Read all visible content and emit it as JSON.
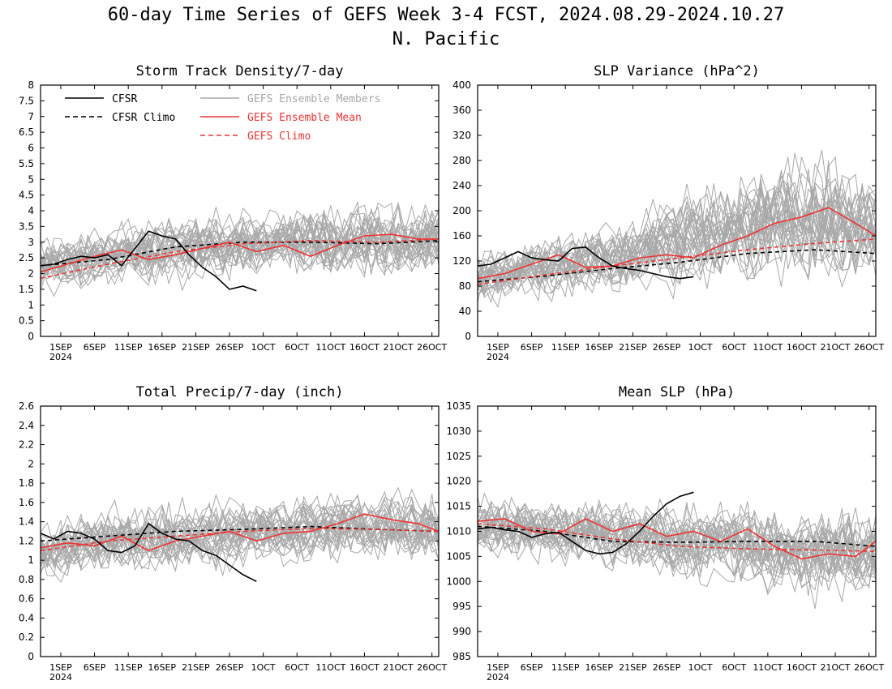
{
  "figure": {
    "title": "60-day Time Series of GEFS Week 3-4 FCST, 2024.08.29-2024.10.27",
    "subtitle": "N. Pacific"
  },
  "legend": {
    "cfsr": "CFSR",
    "cfsr_climo": "CFSR Climo",
    "members": "GEFS Ensemble Members",
    "mean": "GEFS Ensemble Mean",
    "gefs_climo": "GEFS Climo"
  },
  "colors": {
    "cfsr": "#000000",
    "members": "#a8a8a8",
    "mean": "#ee3333",
    "gefs_climo": "#ee3333"
  },
  "chart_data": [
    {
      "type": "line",
      "title": "Storm Track Density/7-day",
      "ylim": [
        0,
        8
      ],
      "yticks": [
        "0",
        "0.5",
        "1",
        "1.5",
        "2",
        "2.5",
        "3",
        "3.5",
        "4",
        "4.5",
        "5",
        "5.5",
        "6",
        "6.5",
        "7",
        "7.5",
        "8"
      ],
      "x_tick_labels": [
        "1SEP",
        "6SEP",
        "11SEP",
        "16SEP",
        "21SEP",
        "26SEP",
        "1OCT",
        "6OCT",
        "11OCT",
        "16OCT",
        "21OCT",
        "26OCT"
      ],
      "x_year_label": "2024",
      "x_start": "2024-08-29",
      "x_end": "2024-10-27",
      "legend": "top-left",
      "series": [
        {
          "name": "CFSR",
          "style": "solid-black",
          "x": [
            0,
            2,
            4,
            6,
            8,
            10,
            12,
            14,
            16,
            18,
            20,
            22,
            24,
            26,
            28,
            30,
            32
          ],
          "y": [
            2.25,
            2.3,
            2.45,
            2.55,
            2.5,
            2.6,
            2.25,
            2.8,
            3.35,
            3.2,
            3.1,
            2.6,
            2.2,
            1.9,
            1.5,
            1.6,
            1.45
          ]
        },
        {
          "name": "CFSR Climo",
          "style": "dashed-black",
          "x": [
            0,
            10,
            20,
            30,
            40,
            50,
            59
          ],
          "y": [
            2.25,
            2.45,
            2.85,
            3.0,
            3.0,
            2.95,
            3.05
          ]
        },
        {
          "name": "GEFS Ensemble Mean",
          "style": "solid-red",
          "x": [
            0,
            4,
            8,
            12,
            16,
            20,
            24,
            28,
            32,
            36,
            40,
            44,
            48,
            52,
            56,
            59
          ],
          "y": [
            2.05,
            2.3,
            2.55,
            2.75,
            2.45,
            2.6,
            2.8,
            3.0,
            2.7,
            2.9,
            2.55,
            2.9,
            3.2,
            3.25,
            3.1,
            3.1
          ]
        },
        {
          "name": "GEFS Climo",
          "style": "dashed-red",
          "x": [
            0,
            10,
            20,
            30,
            40,
            50,
            59
          ],
          "y": [
            1.85,
            2.3,
            2.7,
            2.95,
            3.05,
            3.0,
            3.1
          ]
        },
        {
          "name": "GEFS Ensemble Members",
          "style": "members",
          "center": [
            2.2,
            2.4,
            2.6,
            2.75,
            2.9,
            3.0,
            3.0,
            3.05,
            3.1,
            3.1
          ],
          "spread": [
            0.85,
            0.9,
            0.95,
            1.0,
            1.0,
            1.0,
            1.1,
            1.15,
            1.15,
            1.1
          ]
        }
      ]
    },
    {
      "type": "line",
      "title": "SLP Variance (hPa^2)",
      "ylim": [
        0,
        400
      ],
      "yticks": [
        "0",
        "40",
        "80",
        "120",
        "160",
        "200",
        "240",
        "280",
        "320",
        "360",
        "400"
      ],
      "x_tick_labels": [
        "1SEP",
        "6SEP",
        "11SEP",
        "16SEP",
        "21SEP",
        "26SEP",
        "1OCT",
        "6OCT",
        "11OCT",
        "16OCT",
        "21OCT",
        "26OCT"
      ],
      "x_year_label": "2024",
      "x_start": "2024-08-29",
      "x_end": "2024-10-27",
      "series": [
        {
          "name": "CFSR",
          "style": "solid-black",
          "x": [
            0,
            2,
            4,
            6,
            8,
            10,
            12,
            14,
            16,
            18,
            20,
            22,
            24,
            26,
            28,
            30,
            32
          ],
          "y": [
            112,
            115,
            125,
            135,
            125,
            122,
            120,
            140,
            142,
            125,
            112,
            108,
            105,
            100,
            95,
            92,
            95
          ]
        },
        {
          "name": "CFSR Climo",
          "style": "dashed-black",
          "x": [
            0,
            10,
            20,
            30,
            40,
            50,
            59
          ],
          "y": [
            87,
            96,
            108,
            118,
            132,
            138,
            132
          ]
        },
        {
          "name": "GEFS Ensemble Mean",
          "style": "solid-red",
          "x": [
            0,
            4,
            8,
            12,
            16,
            20,
            24,
            28,
            32,
            36,
            40,
            44,
            48,
            52,
            56,
            59
          ],
          "y": [
            92,
            100,
            115,
            130,
            110,
            112,
            125,
            130,
            125,
            145,
            160,
            180,
            190,
            205,
            180,
            160
          ]
        },
        {
          "name": "GEFS Climo",
          "style": "dashed-red",
          "x": [
            0,
            10,
            20,
            30,
            40,
            50,
            59
          ],
          "y": [
            83,
            98,
            112,
            125,
            138,
            148,
            155
          ]
        },
        {
          "name": "GEFS Ensemble Members",
          "style": "members",
          "center": [
            95,
            105,
            115,
            125,
            140,
            160,
            175,
            185,
            185,
            175
          ],
          "spread": [
            40,
            45,
            50,
            55,
            65,
            75,
            85,
            95,
            90,
            80
          ]
        }
      ]
    },
    {
      "type": "line",
      "title": "Total Precip/7-day (inch)",
      "ylim": [
        0,
        2.6
      ],
      "yticks": [
        "0",
        "0.2",
        "0.4",
        "0.6",
        "0.8",
        "1",
        "1.2",
        "1.4",
        "1.6",
        "1.8",
        "2",
        "2.2",
        "2.4",
        "2.6"
      ],
      "x_tick_labels": [
        "1SEP",
        "6SEP",
        "11SEP",
        "16SEP",
        "21SEP",
        "26SEP",
        "1OCT",
        "6OCT",
        "11OCT",
        "16OCT",
        "21OCT",
        "26OCT"
      ],
      "x_year_label": "2024",
      "x_start": "2024-08-29",
      "x_end": "2024-10-27",
      "series": [
        {
          "name": "CFSR",
          "style": "solid-black",
          "x": [
            0,
            2,
            4,
            6,
            8,
            10,
            12,
            14,
            16,
            18,
            20,
            22,
            24,
            26,
            28,
            30,
            32
          ],
          "y": [
            1.28,
            1.22,
            1.3,
            1.28,
            1.22,
            1.1,
            1.08,
            1.15,
            1.38,
            1.28,
            1.22,
            1.2,
            1.1,
            1.05,
            0.95,
            0.85,
            0.78
          ]
        },
        {
          "name": "CFSR Climo",
          "style": "dashed-black",
          "x": [
            0,
            10,
            20,
            30,
            40,
            50,
            59
          ],
          "y": [
            1.2,
            1.25,
            1.3,
            1.32,
            1.35,
            1.32,
            1.3
          ]
        },
        {
          "name": "GEFS Ensemble Mean",
          "style": "solid-red",
          "x": [
            0,
            4,
            8,
            12,
            16,
            20,
            24,
            28,
            32,
            36,
            40,
            44,
            48,
            52,
            56,
            59
          ],
          "y": [
            1.13,
            1.18,
            1.15,
            1.25,
            1.1,
            1.2,
            1.25,
            1.3,
            1.2,
            1.28,
            1.3,
            1.38,
            1.48,
            1.42,
            1.38,
            1.3
          ]
        },
        {
          "name": "GEFS Climo",
          "style": "dashed-red",
          "x": [
            0,
            10,
            20,
            30,
            40,
            50,
            59
          ],
          "y": [
            1.1,
            1.2,
            1.25,
            1.3,
            1.33,
            1.32,
            1.3
          ]
        },
        {
          "name": "GEFS Ensemble Members",
          "style": "members",
          "center": [
            1.1,
            1.18,
            1.22,
            1.25,
            1.28,
            1.3,
            1.32,
            1.35,
            1.35,
            1.3
          ],
          "spread": [
            0.3,
            0.32,
            0.33,
            0.33,
            0.33,
            0.33,
            0.34,
            0.36,
            0.36,
            0.34
          ]
        }
      ]
    },
    {
      "type": "line",
      "title": "Mean SLP (hPa)",
      "ylim": [
        985,
        1035
      ],
      "yticks": [
        "985",
        "990",
        "995",
        "1000",
        "1005",
        "1010",
        "1015",
        "1020",
        "1025",
        "1030",
        "1035"
      ],
      "x_tick_labels": [
        "1SEP",
        "6SEP",
        "11SEP",
        "16SEP",
        "21SEP",
        "26SEP",
        "1OCT",
        "6OCT",
        "11OCT",
        "16OCT",
        "21OCT",
        "26OCT"
      ],
      "x_year_label": "2024",
      "x_start": "2024-08-29",
      "x_end": "2024-10-27",
      "series": [
        {
          "name": "CFSR",
          "style": "solid-black",
          "x": [
            0,
            2,
            4,
            6,
            8,
            10,
            12,
            14,
            16,
            18,
            20,
            22,
            24,
            26,
            28,
            30,
            32
          ],
          "y": [
            1010.5,
            1010.8,
            1010.3,
            1010,
            1008.8,
            1009.5,
            1009.8,
            1008,
            1006.2,
            1005.5,
            1005.8,
            1007.5,
            1010,
            1013,
            1015.5,
            1017,
            1017.8
          ]
        },
        {
          "name": "CFSR Climo",
          "style": "dashed-black",
          "x": [
            0,
            10,
            20,
            30,
            40,
            50,
            59
          ],
          "y": [
            1011,
            1010,
            1008,
            1007.8,
            1008,
            1008,
            1007
          ]
        },
        {
          "name": "GEFS Ensemble Mean",
          "style": "solid-red",
          "x": [
            0,
            4,
            8,
            12,
            16,
            20,
            24,
            28,
            32,
            36,
            40,
            44,
            48,
            52,
            56,
            59
          ],
          "y": [
            1012,
            1012.5,
            1010,
            1009.5,
            1012.5,
            1010,
            1011.5,
            1009,
            1010,
            1008,
            1010.5,
            1007,
            1004.5,
            1005.5,
            1005,
            1008
          ]
        },
        {
          "name": "GEFS Climo",
          "style": "dashed-red",
          "x": [
            0,
            10,
            20,
            30,
            40,
            50,
            59
          ],
          "y": [
            1011.5,
            1010.5,
            1008.5,
            1007,
            1006.5,
            1006.3,
            1006
          ]
        },
        {
          "name": "GEFS Ensemble Members",
          "style": "members",
          "center": [
            1011,
            1011,
            1010,
            1009.5,
            1008.5,
            1008,
            1007,
            1006,
            1005.5,
            1006
          ],
          "spread": [
            6,
            6,
            6.5,
            6.5,
            7,
            7.5,
            8,
            8.5,
            8.5,
            8
          ]
        }
      ]
    }
  ]
}
